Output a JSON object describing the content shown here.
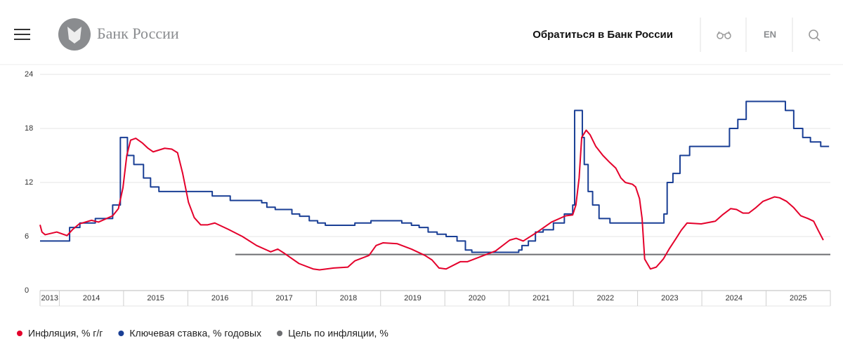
{
  "header": {
    "logo_text": "Банк России",
    "contact": "Обратиться в Банк России",
    "lang": "EN"
  },
  "chart_data": {
    "type": "line",
    "xlim": [
      2013.7,
      2026.0
    ],
    "x_labels": [
      2013,
      2014,
      2015,
      2016,
      2017,
      2018,
      2019,
      2020,
      2021,
      2022,
      2023,
      2024,
      2025
    ],
    "ylim": [
      0,
      24
    ],
    "yticks": [
      0,
      6,
      12,
      18,
      24
    ],
    "grid": true,
    "series": [
      {
        "name": "Инфляция, % г/г",
        "color": "#e4002b",
        "step": false,
        "x": [
          2013.7,
          2013.73,
          2013.78,
          2013.96,
          2014.12,
          2014.21,
          2014.31,
          2014.5,
          2014.61,
          2014.83,
          2014.92,
          2014.99,
          2015.05,
          2015.11,
          2015.19,
          2015.29,
          2015.38,
          2015.46,
          2015.64,
          2015.75,
          2015.84,
          2015.92,
          2016.01,
          2016.1,
          2016.2,
          2016.31,
          2016.42,
          2016.63,
          2016.85,
          2017.07,
          2017.29,
          2017.4,
          2017.51,
          2017.73,
          2017.95,
          2018.05,
          2018.27,
          2018.49,
          2018.6,
          2018.82,
          2018.93,
          2019.04,
          2019.26,
          2019.48,
          2019.69,
          2019.8,
          2019.91,
          2020.02,
          2020.24,
          2020.35,
          2020.57,
          2020.79,
          2021.01,
          2021.11,
          2021.22,
          2021.44,
          2021.66,
          2021.88,
          2021.99,
          2022.04,
          2022.09,
          2022.13,
          2022.2,
          2022.26,
          2022.35,
          2022.46,
          2022.57,
          2022.66,
          2022.74,
          2022.81,
          2022.92,
          2022.97,
          2023.03,
          2023.07,
          2023.11,
          2023.2,
          2023.29,
          2023.4,
          2023.49,
          2023.6,
          2023.68,
          2023.77,
          2023.99,
          2024.21,
          2024.32,
          2024.45,
          2024.54,
          2024.64,
          2024.73,
          2024.84,
          2024.95,
          2025.13,
          2025.21,
          2025.32,
          2025.43,
          2025.54,
          2025.65,
          2025.74,
          2025.81,
          2025.89
        ],
        "values": [
          7.3,
          6.5,
          6.2,
          6.5,
          6.1,
          6.8,
          7.4,
          7.8,
          7.6,
          8.3,
          9.1,
          11.4,
          15.0,
          16.7,
          16.9,
          16.4,
          15.8,
          15.4,
          15.8,
          15.7,
          15.3,
          13.0,
          9.8,
          8.1,
          7.3,
          7.3,
          7.5,
          6.8,
          6.0,
          5.0,
          4.3,
          4.6,
          4.1,
          3.0,
          2.4,
          2.3,
          2.5,
          2.6,
          3.3,
          3.9,
          5.0,
          5.3,
          5.2,
          4.6,
          3.9,
          3.4,
          2.5,
          2.4,
          3.2,
          3.2,
          3.8,
          4.4,
          5.6,
          5.8,
          5.5,
          6.5,
          7.6,
          8.3,
          8.4,
          9.5,
          12.5,
          17.0,
          17.8,
          17.3,
          16.0,
          15.0,
          14.2,
          13.6,
          12.5,
          12.0,
          11.8,
          11.5,
          10.2,
          8.0,
          3.5,
          2.4,
          2.6,
          3.5,
          4.6,
          5.8,
          6.7,
          7.5,
          7.4,
          7.7,
          8.4,
          9.1,
          9.0,
          8.6,
          8.6,
          9.2,
          9.9,
          10.4,
          10.3,
          9.9,
          9.2,
          8.3,
          8.0,
          7.7,
          6.7,
          5.6
        ]
      },
      {
        "name": "Ключевая ставка, % годовых",
        "color": "#1a3f95",
        "step": true,
        "x": [
          2013.7,
          2014.16,
          2014.32,
          2014.56,
          2014.83,
          2014.95,
          2015.06,
          2015.16,
          2015.31,
          2015.42,
          2015.55,
          2016.38,
          2016.66,
          2017.15,
          2017.23,
          2017.36,
          2017.62,
          2017.74,
          2017.89,
          2018.02,
          2018.14,
          2018.6,
          2018.85,
          2019.33,
          2019.48,
          2019.6,
          2019.74,
          2019.88,
          2020.02,
          2020.19,
          2020.32,
          2020.42,
          2021.15,
          2021.2,
          2021.3,
          2021.41,
          2021.53,
          2021.69,
          2021.86,
          2021.99,
          2022.02,
          2022.14,
          2022.17,
          2022.23,
          2022.3,
          2022.4,
          2022.57,
          2023.41,
          2023.46,
          2023.55,
          2023.66,
          2023.81,
          2024.43,
          2024.56,
          2024.69,
          2025.3,
          2025.43,
          2025.57,
          2025.69,
          2025.85,
          2025.98
        ],
        "values": [
          5.5,
          7,
          7.5,
          8,
          9.5,
          17,
          15,
          14,
          12.5,
          11.5,
          11,
          10.5,
          10,
          9.75,
          9.25,
          9,
          8.5,
          8.25,
          7.75,
          7.5,
          7.25,
          7.5,
          7.75,
          7.5,
          7.25,
          7,
          6.5,
          6.25,
          6,
          5.5,
          4.5,
          4.25,
          4.5,
          5,
          5.5,
          6.5,
          6.75,
          7.5,
          8.5,
          9.5,
          20,
          17,
          14,
          11,
          9.5,
          8,
          7.5,
          8.5,
          12,
          13,
          15,
          16,
          18,
          19,
          21,
          20,
          18,
          17,
          16.5,
          16,
          16
        ]
      },
      {
        "name": "Цель по инфляции, %",
        "color": "#6d6e71",
        "step": false,
        "x": [
          2016.74,
          2026.0
        ],
        "values": [
          4,
          4
        ]
      }
    ]
  }
}
